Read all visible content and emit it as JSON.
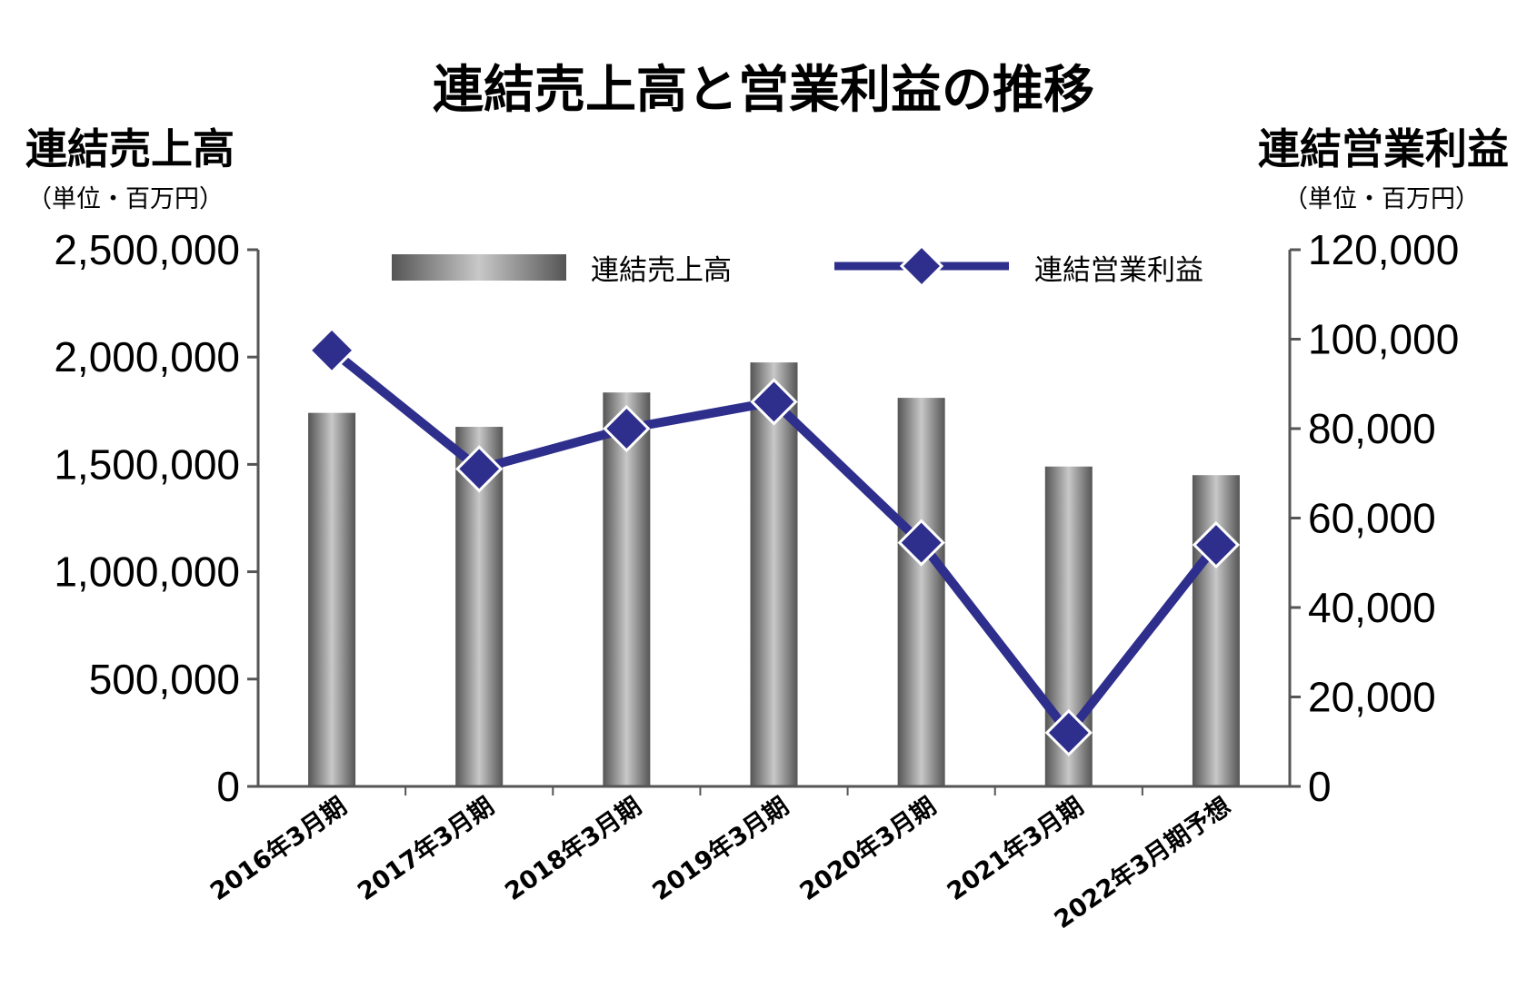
{
  "chart_data": {
    "type": "bar",
    "title": "連結売上高と営業利益の推移",
    "categories": [
      "2016年3月期",
      "2017年3月期",
      "2018年3月期",
      "2019年3月期",
      "2020年3月期",
      "2021年3月期",
      "2022年3月期予想"
    ],
    "series": [
      {
        "name": "連結売上高",
        "type": "bar",
        "axis": "left",
        "values": [
          1740000,
          1675000,
          1835000,
          1975000,
          1810000,
          1490000,
          1450000
        ]
      },
      {
        "name": "連結営業利益",
        "type": "line",
        "axis": "right",
        "marker": "diamond",
        "values": [
          97500,
          71000,
          80000,
          86000,
          54500,
          12000,
          54000
        ]
      }
    ],
    "left_axis": {
      "label": "連結売上高",
      "unit": "（単位・百万円）",
      "ylim": [
        0,
        2500000
      ],
      "ticks": [
        "0",
        "500,000",
        "1,000,000",
        "1,500,000",
        "2,000,000",
        "2,500,000"
      ]
    },
    "right_axis": {
      "label": "連結営業利益",
      "unit": "（単位・百万円）",
      "ylim": [
        0,
        120000
      ],
      "ticks": [
        "0",
        "20,000",
        "40,000",
        "60,000",
        "80,000",
        "100,000",
        "120,000"
      ]
    },
    "legend": {
      "placement": "top-center",
      "items": [
        "連結売上高",
        "連結営業利益"
      ]
    },
    "grid": false,
    "colors": {
      "bar_dark": "#555555",
      "bar_light": "#c8c8c8",
      "line": "#2e2e8c",
      "axis": "#555555"
    }
  }
}
